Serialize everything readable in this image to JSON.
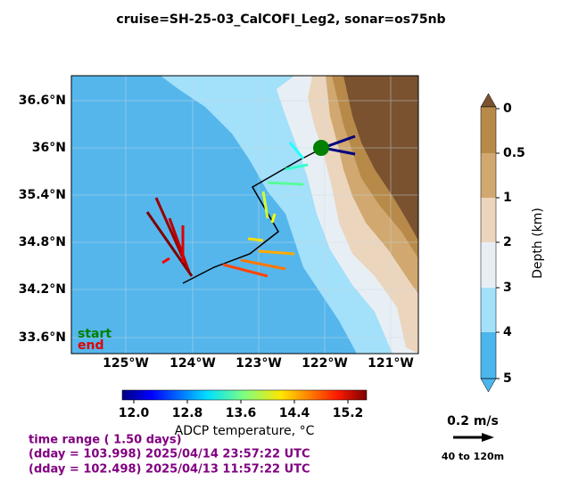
{
  "title": "cruise=SH-25-03_CalCOFI_Leg2,   sonar=os75nb",
  "map": {
    "lat_labels": [
      "36.6°N",
      "36°N",
      "35.4°N",
      "34.8°N",
      "34.2°N",
      "33.6°N"
    ],
    "lon_labels": [
      "125°W",
      "124°W",
      "123°W",
      "122°W",
      "121°W"
    ],
    "start_label": "start",
    "end_label": "end"
  },
  "temperature_colorbar": {
    "ticks": [
      "12.0",
      "12.8",
      "13.6",
      "14.4",
      "15.2"
    ],
    "label": "ADCP temperature, °C"
  },
  "depth_colorbar": {
    "ticks": [
      "0",
      "0.5",
      "1",
      "2",
      "3",
      "4",
      "5"
    ],
    "label": "Depth (km)"
  },
  "scale_arrow": {
    "label": "0.2 m/s",
    "depth_range": "40 to 120m"
  },
  "time_info": {
    "range": "time range ( 1.50 days)",
    "end": "(dday = 103.998) 2025/04/14 23:57:22 UTC",
    "start": "(dday = 102.498) 2025/04/13 11:57:22 UTC"
  }
}
